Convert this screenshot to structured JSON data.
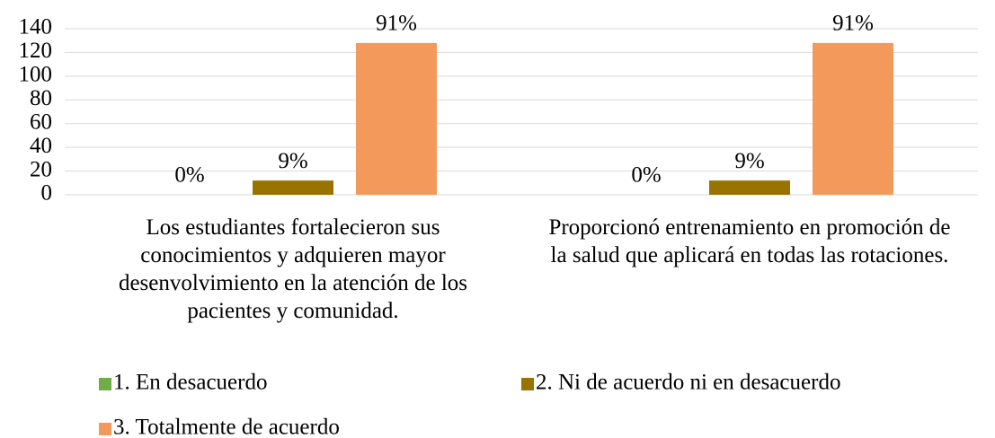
{
  "chart_data": {
    "type": "bar",
    "categories": [
      "Los estudiantes fortalecieron sus conocimientos y adquieren mayor desenvolvimiento en la atención de los pacientes y comunidad.",
      "Proporcionó entrenamiento en promoción de la salud que aplicará en todas las rotaciones."
    ],
    "series": [
      {
        "name": "1. En desacuerdo",
        "color": "#70ad47",
        "values": [
          0,
          0
        ],
        "value_labels": [
          "0%",
          "0%"
        ]
      },
      {
        "name": "2. Ni de acuerdo ni en desacuerdo",
        "color": "#997300",
        "values": [
          12,
          12
        ],
        "value_labels": [
          "9%",
          "9%"
        ]
      },
      {
        "name": "3. Totalmente de acuerdo",
        "color": "#f4995c",
        "values": [
          128,
          128
        ],
        "value_labels": [
          "91%",
          "91%"
        ]
      }
    ],
    "ylim": [
      0,
      140
    ],
    "yticks": [
      0,
      20,
      40,
      60,
      80,
      100,
      120,
      140
    ],
    "grid": true,
    "legend": "bottom"
  }
}
